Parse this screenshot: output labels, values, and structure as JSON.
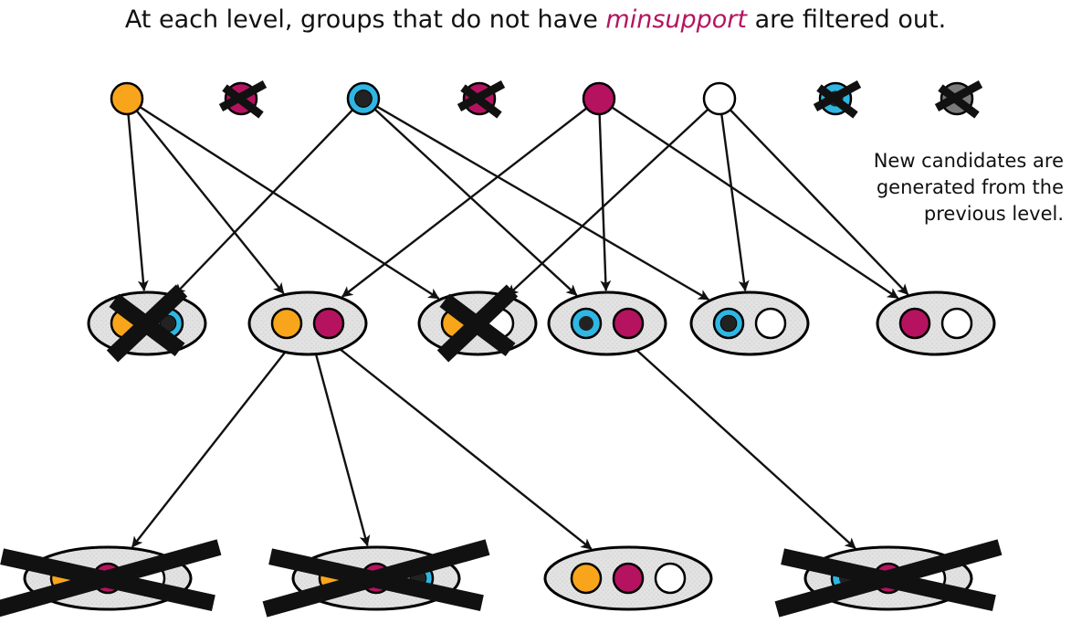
{
  "title": {
    "before": "At each level, groups that do not have ",
    "keyword": "minsupport",
    "after": " are filtered out."
  },
  "note": {
    "lines": [
      "New candidates are",
      "generated from the",
      "previous level."
    ]
  },
  "colors": {
    "orange": "#f8a51c",
    "magenta": "#b5135f",
    "cyan": "#2fb6e3",
    "white": "#ffffff",
    "dark": "#222222",
    "gray": "#7a7a7a",
    "groupFill": "#e2e2e2",
    "keyword": "#b5135f",
    "cross": "#111111"
  },
  "levels": [
    {
      "name": "level-1",
      "nodes": [
        {
          "id": "a",
          "items": [
            "orange"
          ],
          "filtered": false
        },
        {
          "id": "b",
          "items": [
            "magenta"
          ],
          "filtered": true
        },
        {
          "id": "c",
          "items": [
            "cyan-dot"
          ],
          "filtered": false
        },
        {
          "id": "d",
          "items": [
            "magenta"
          ],
          "filtered": true
        },
        {
          "id": "e",
          "items": [
            "magenta"
          ],
          "filtered": false
        },
        {
          "id": "f",
          "items": [
            "white"
          ],
          "filtered": false
        },
        {
          "id": "g",
          "items": [
            "cyan"
          ],
          "filtered": true
        },
        {
          "id": "h",
          "items": [
            "gray"
          ],
          "filtered": true
        }
      ]
    },
    {
      "name": "level-2",
      "nodes": [
        {
          "id": "ac",
          "items": [
            "orange",
            "cyan-dot"
          ],
          "filtered": true
        },
        {
          "id": "ae",
          "items": [
            "orange",
            "magenta"
          ],
          "filtered": false
        },
        {
          "id": "af",
          "items": [
            "orange",
            "white"
          ],
          "filtered": true
        },
        {
          "id": "ce",
          "items": [
            "cyan",
            "magenta"
          ],
          "filtered": false
        },
        {
          "id": "cf",
          "items": [
            "cyan-dot",
            "white"
          ],
          "filtered": false
        },
        {
          "id": "ef",
          "items": [
            "magenta",
            "white"
          ],
          "filtered": false
        }
      ]
    },
    {
      "name": "level-3",
      "nodes": [
        {
          "id": "aef",
          "items": [
            "orange",
            "magenta",
            "white"
          ],
          "filtered": true
        },
        {
          "id": "aec",
          "items": [
            "orange",
            "magenta",
            "cyan-dot"
          ],
          "filtered": true
        },
        {
          "id": "aef2",
          "items": [
            "orange",
            "magenta",
            "white"
          ],
          "filtered": false
        },
        {
          "id": "cef",
          "items": [
            "cyan",
            "magenta",
            "white"
          ],
          "filtered": true
        }
      ]
    }
  ],
  "edges": [
    [
      "a",
      "ac"
    ],
    [
      "a",
      "ae"
    ],
    [
      "a",
      "af"
    ],
    [
      "c",
      "ac"
    ],
    [
      "c",
      "ce"
    ],
    [
      "c",
      "cf"
    ],
    [
      "e",
      "ae"
    ],
    [
      "e",
      "ce"
    ],
    [
      "e",
      "ef"
    ],
    [
      "f",
      "af"
    ],
    [
      "f",
      "cf"
    ],
    [
      "f",
      "ef"
    ],
    [
      "ae",
      "aef"
    ],
    [
      "ae",
      "aec"
    ],
    [
      "ae",
      "aef2"
    ],
    [
      "ce",
      "cef"
    ]
  ]
}
